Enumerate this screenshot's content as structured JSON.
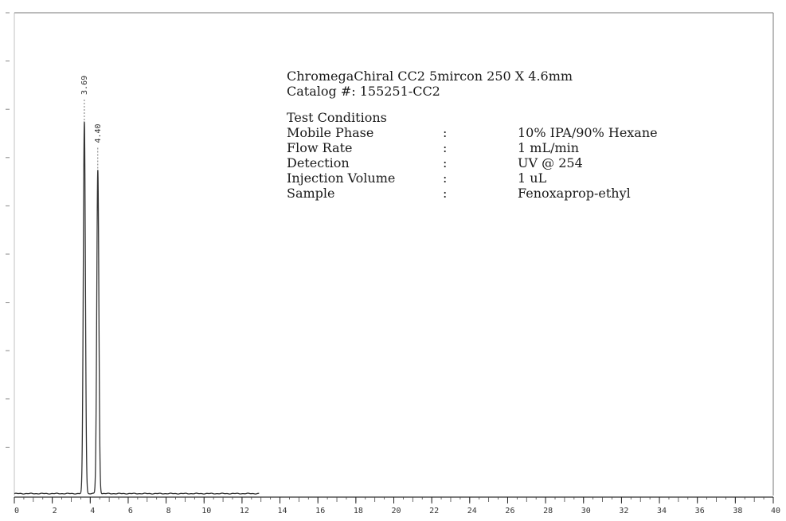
{
  "chart_data": {
    "type": "line",
    "x_ticks": [
      0,
      2,
      4,
      6,
      8,
      10,
      12,
      14,
      16,
      18,
      20,
      22,
      24,
      26,
      28,
      30,
      32,
      34,
      36,
      38,
      40
    ],
    "xlim": [
      0,
      40
    ],
    "ylim": [
      0,
      100
    ],
    "data_x_end": 12.9,
    "baseline": 0.4,
    "grid": false,
    "peaks": [
      {
        "label": "3.69",
        "x": 3.69,
        "height": 77
      },
      {
        "label": "4.40",
        "x": 4.4,
        "height": 67
      }
    ]
  },
  "info": {
    "column": "ChromegaChiral CC2 5mircon 250 X 4.6mm",
    "catalog": "Catalog #: 155251-CC2",
    "conditions_heading": "Test Conditions",
    "conditions": [
      {
        "key": "Mobile Phase",
        "sep": ":",
        "value": "10% IPA/90% Hexane"
      },
      {
        "key": "Flow Rate",
        "sep": ":",
        "value": "1 mL/min"
      },
      {
        "key": "Detection",
        "sep": ":",
        "value": "UV @ 254"
      },
      {
        "key": "Injection Volume",
        "sep": ":",
        "value": "1 uL"
      },
      {
        "key": "Sample",
        "sep": ":",
        "value": "Fenoxaprop-ethyl"
      }
    ]
  }
}
